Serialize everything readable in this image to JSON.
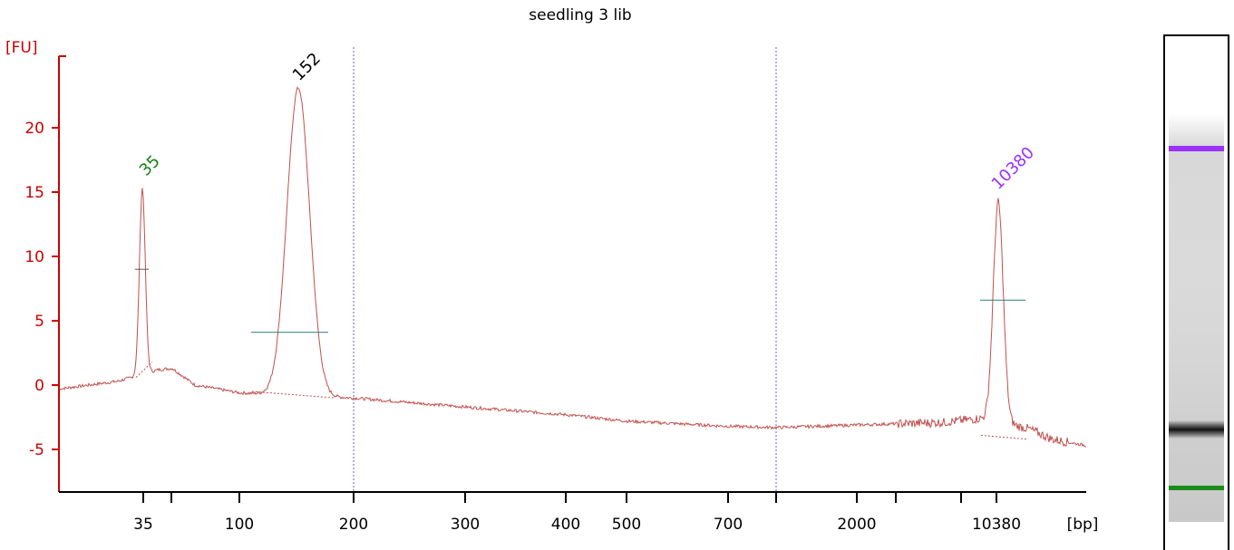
{
  "chart_data": {
    "type": "line",
    "title": "seedling 3 lib",
    "xlabel": "[bp]",
    "ylabel": "[FU]",
    "x_ticks": [
      "35",
      "100",
      "200",
      "300",
      "400",
      "500",
      "700",
      "2000",
      "10380"
    ],
    "y_ticks": [
      -5,
      0,
      5,
      10,
      15,
      20
    ],
    "ylim": [
      -8.5,
      25
    ],
    "grid": false,
    "peaks": [
      {
        "label": "35",
        "size_bp": 35,
        "height_fu": 15.3,
        "color": "#1a7f1a",
        "role": "lower marker"
      },
      {
        "label": "152",
        "size_bp": 152,
        "height_fu": 23.1,
        "color": "#000000",
        "role": "sample"
      },
      {
        "label": "10380",
        "size_bp": 10380,
        "height_fu": 14.2,
        "color": "#9b30ff",
        "role": "upper marker"
      }
    ],
    "baseline_fu": [
      {
        "bp": "start",
        "fu": -0.3
      },
      {
        "bp": 100,
        "fu": -0.6
      },
      {
        "bp": 200,
        "fu": -1.0
      },
      {
        "bp": 300,
        "fu": -1.7
      },
      {
        "bp": 400,
        "fu": -2.3
      },
      {
        "bp": 500,
        "fu": -2.8
      },
      {
        "bp": 700,
        "fu": -3.2
      },
      {
        "bp": 2000,
        "fu": -3.1
      },
      {
        "bp": 10380,
        "fu": -2.8
      },
      {
        "bp": "end",
        "fu": -4.7
      }
    ],
    "colors": {
      "trace": "#c0504d",
      "axis": "#cc0000",
      "baseline_line": "#2e7d7d",
      "divider": "#6666cc"
    }
  },
  "gel": {
    "bands": [
      {
        "name": "upper-marker",
        "color": "#9b30ff"
      },
      {
        "name": "sample",
        "color": "#111111"
      },
      {
        "name": "lower-marker",
        "color": "#1a8c1a"
      }
    ]
  }
}
